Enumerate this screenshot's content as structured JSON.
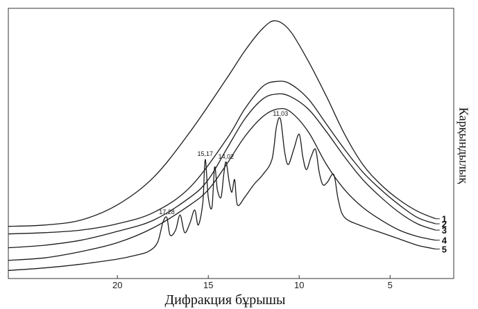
{
  "chart_data": {
    "type": "line",
    "xlabel": "Дифракция бұрышы",
    "ylabel": "Карқындылық",
    "x_reversed": true,
    "xlim": [
      26,
      1.5
    ],
    "ylim": [
      0,
      10
    ],
    "xticks": [
      20,
      15,
      10,
      5
    ],
    "grid": false,
    "legend": "curve numbers at right end of each line",
    "series": [
      {
        "name": "1",
        "points": [
          [
            26,
            1.85
          ],
          [
            24,
            1.9
          ],
          [
            22,
            2.1
          ],
          [
            20,
            2.7
          ],
          [
            18,
            3.8
          ],
          [
            16,
            5.6
          ],
          [
            14,
            7.7
          ],
          [
            13,
            8.8
          ],
          [
            12,
            9.7
          ],
          [
            11.3,
            10
          ],
          [
            10.5,
            9.6
          ],
          [
            9.5,
            8.4
          ],
          [
            8.5,
            7.0
          ],
          [
            7.5,
            5.5
          ],
          [
            6.5,
            4.3
          ],
          [
            5.5,
            3.5
          ],
          [
            4.5,
            2.9
          ],
          [
            3.5,
            2.45
          ],
          [
            2.5,
            2.15
          ]
        ]
      },
      {
        "name": "2",
        "points": [
          [
            26,
            1.55
          ],
          [
            24,
            1.6
          ],
          [
            22,
            1.7
          ],
          [
            20,
            1.95
          ],
          [
            18,
            2.4
          ],
          [
            16,
            3.4
          ],
          [
            14,
            5.3
          ],
          [
            13,
            6.5
          ],
          [
            12,
            7.4
          ],
          [
            11.2,
            7.6
          ],
          [
            10.5,
            7.5
          ],
          [
            9.5,
            6.9
          ],
          [
            8.5,
            5.9
          ],
          [
            7.5,
            4.9
          ],
          [
            6.5,
            4.0
          ],
          [
            5.5,
            3.3
          ],
          [
            4.5,
            2.7
          ],
          [
            3.5,
            2.2
          ],
          [
            2.5,
            1.95
          ]
        ]
      },
      {
        "name": "3",
        "points": [
          [
            26,
            1.0
          ],
          [
            24,
            1.1
          ],
          [
            22,
            1.3
          ],
          [
            20,
            1.65
          ],
          [
            18,
            2.1
          ],
          [
            16,
            3.0
          ],
          [
            15,
            3.7
          ],
          [
            14,
            4.9
          ],
          [
            13,
            6.1
          ],
          [
            12,
            6.9
          ],
          [
            11.2,
            7.1
          ],
          [
            10.5,
            7.0
          ],
          [
            9.5,
            6.5
          ],
          [
            8.5,
            5.6
          ],
          [
            7.5,
            4.6
          ],
          [
            6.5,
            3.7
          ],
          [
            5.5,
            3.0
          ],
          [
            4.5,
            2.4
          ],
          [
            3.5,
            1.95
          ],
          [
            2.5,
            1.7
          ]
        ]
      },
      {
        "name": "4",
        "points": [
          [
            26,
            0.5
          ],
          [
            24,
            0.6
          ],
          [
            22,
            0.85
          ],
          [
            20,
            1.2
          ],
          [
            18,
            1.8
          ],
          [
            16,
            2.7
          ],
          [
            15,
            3.3
          ],
          [
            14,
            4.3
          ],
          [
            13,
            5.4
          ],
          [
            12,
            6.2
          ],
          [
            11.2,
            6.5
          ],
          [
            10.5,
            6.4
          ],
          [
            9.5,
            5.6
          ],
          [
            8.5,
            4.3
          ],
          [
            7.5,
            3.3
          ],
          [
            6.5,
            2.6
          ],
          [
            5.5,
            2.1
          ],
          [
            4.5,
            1.7
          ],
          [
            3.5,
            1.45
          ],
          [
            2.5,
            1.3
          ]
        ]
      },
      {
        "name": "5",
        "points": [
          [
            26,
            0.1
          ],
          [
            24,
            0.2
          ],
          [
            22,
            0.35
          ],
          [
            20,
            0.55
          ],
          [
            19,
            0.7
          ],
          [
            18.3,
            0.85
          ],
          [
            17.8,
            1.2
          ],
          [
            17.5,
            2.0
          ],
          [
            17.28,
            2.2
          ],
          [
            17.1,
            1.5
          ],
          [
            16.8,
            1.7
          ],
          [
            16.55,
            2.3
          ],
          [
            16.3,
            1.6
          ],
          [
            16.0,
            2.0
          ],
          [
            15.75,
            2.5
          ],
          [
            15.55,
            1.9
          ],
          [
            15.3,
            2.8
          ],
          [
            15.17,
            4.5
          ],
          [
            15.0,
            3.0
          ],
          [
            14.8,
            2.6
          ],
          [
            14.65,
            4.2
          ],
          [
            14.5,
            3.3
          ],
          [
            14.3,
            3.0
          ],
          [
            14.15,
            3.9
          ],
          [
            14.02,
            4.4
          ],
          [
            13.85,
            3.6
          ],
          [
            13.7,
            3.2
          ],
          [
            13.55,
            3.7
          ],
          [
            13.4,
            2.7
          ],
          [
            13.0,
            3.0
          ],
          [
            12.5,
            3.5
          ],
          [
            12.0,
            3.9
          ],
          [
            11.5,
            4.5
          ],
          [
            11.25,
            5.8
          ],
          [
            11.03,
            6.1
          ],
          [
            10.8,
            4.8
          ],
          [
            10.6,
            4.3
          ],
          [
            10.3,
            4.9
          ],
          [
            10.0,
            5.5
          ],
          [
            9.8,
            4.6
          ],
          [
            9.6,
            4.1
          ],
          [
            9.35,
            4.6
          ],
          [
            9.1,
            4.9
          ],
          [
            8.9,
            4.0
          ],
          [
            8.7,
            3.5
          ],
          [
            8.45,
            3.6
          ],
          [
            8.1,
            3.9
          ],
          [
            7.85,
            2.9
          ],
          [
            7.5,
            2.2
          ],
          [
            6.5,
            1.85
          ],
          [
            5.5,
            1.6
          ],
          [
            4.5,
            1.35
          ],
          [
            3.5,
            1.1
          ],
          [
            2.5,
            0.95
          ]
        ]
      }
    ],
    "annotations": [
      {
        "text": "17,28",
        "x": 17.28,
        "y": 2.2
      },
      {
        "text": "15,17",
        "x": 15.17,
        "y": 4.5
      },
      {
        "text": "14,02",
        "x": 14.02,
        "y": 4.4
      },
      {
        "text": "11,03",
        "x": 11.03,
        "y": 6.1
      }
    ]
  }
}
